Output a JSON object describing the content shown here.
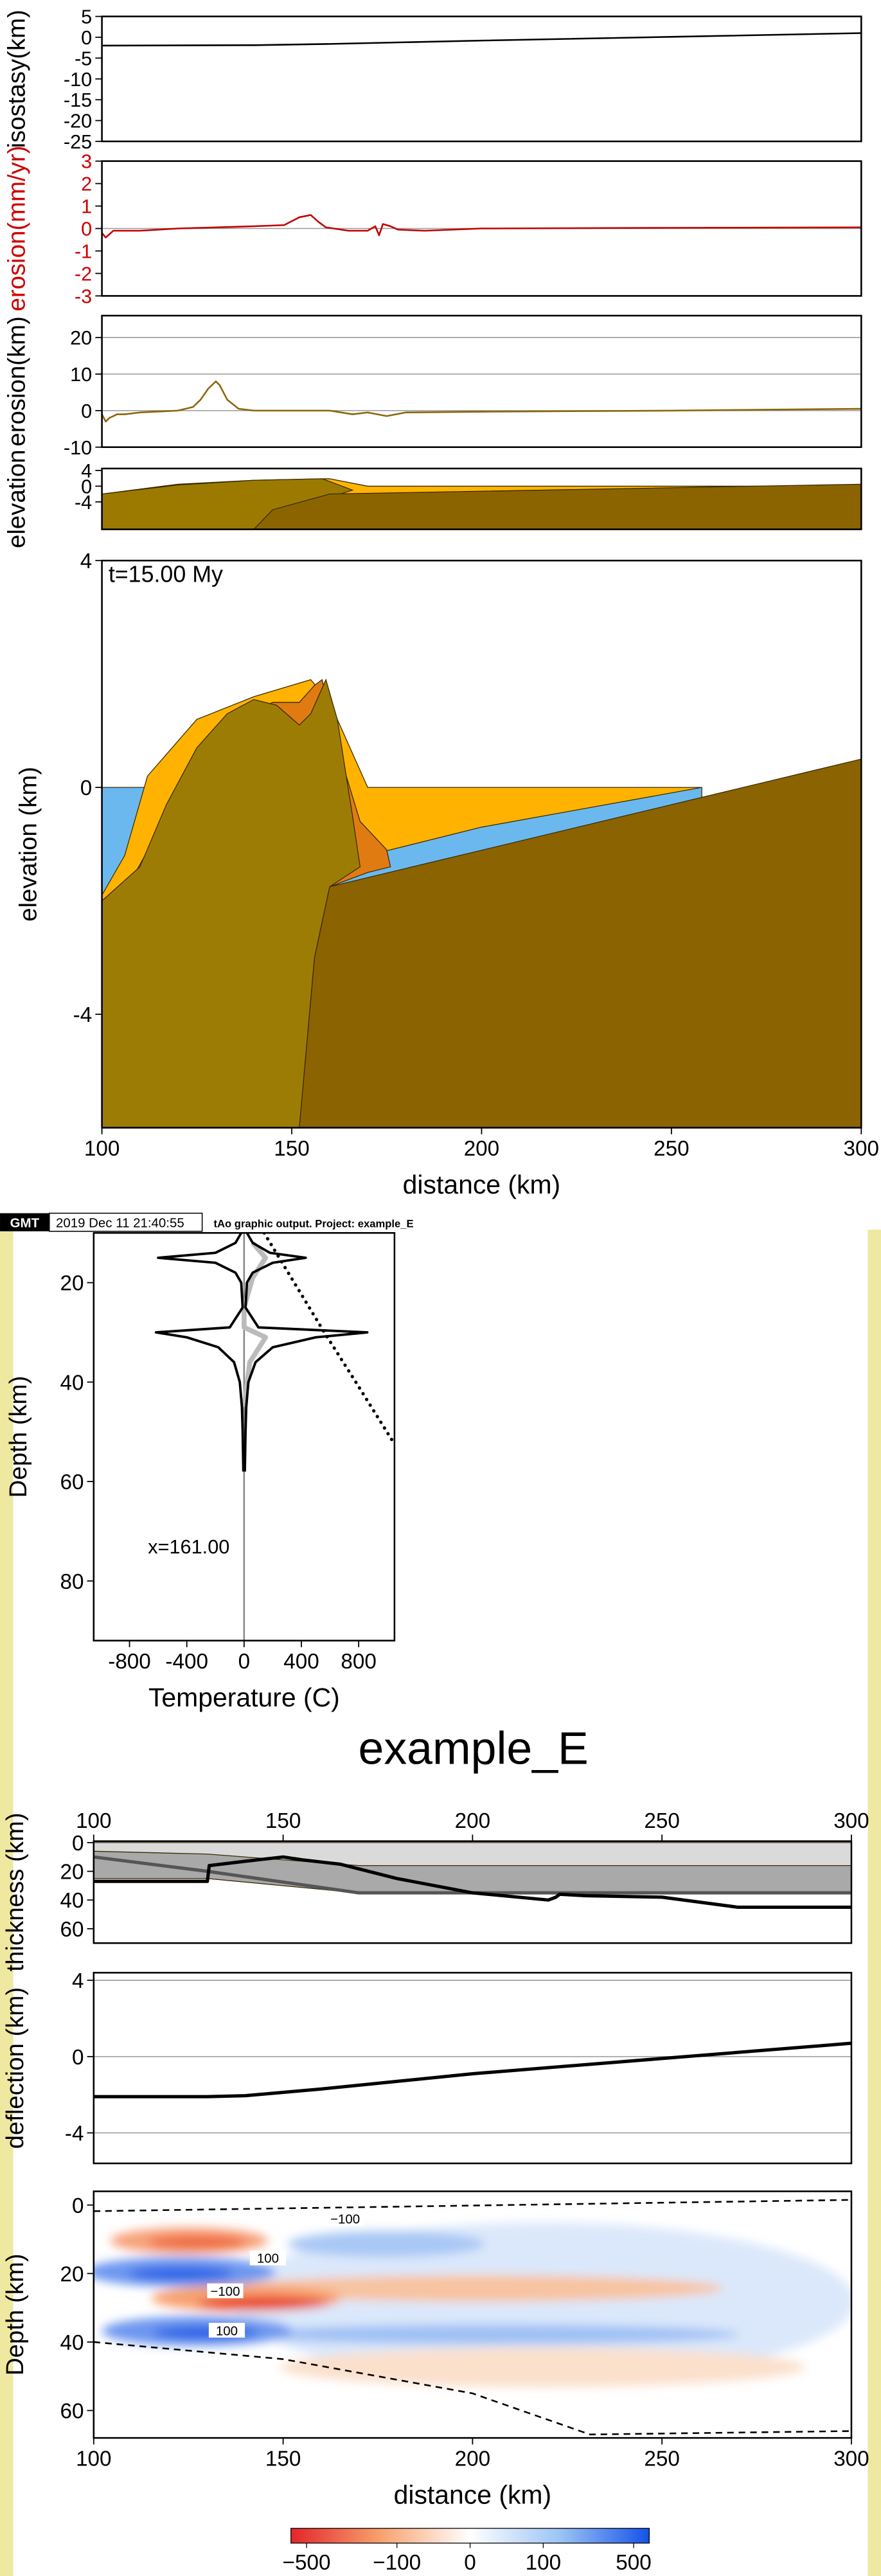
{
  "header": {
    "logo": "GMT",
    "timestamp": "2019 Dec 11 21:40:55",
    "caption": "tAo graphic output. Project: example_E"
  },
  "title": "example_E",
  "chart_data": [
    {
      "type": "line",
      "ylabel": "isostasy(km)",
      "xlim": [
        100,
        300
      ],
      "ylim": [
        -25,
        5
      ],
      "yticks": [
        5,
        0,
        -5,
        -10,
        -15,
        -20,
        -25
      ],
      "series": [
        {
          "color": "#000000",
          "x": [
            100,
            140,
            160,
            200,
            250,
            300
          ],
          "values": [
            -2,
            -1.9,
            -1.6,
            -0.8,
            0.1,
            1
          ]
        }
      ]
    },
    {
      "type": "line",
      "ylabel": "erosion(mm/yr)",
      "label_color": "#cc0000",
      "xlim": [
        100,
        300
      ],
      "ylim": [
        -3,
        3
      ],
      "yticks": [
        3,
        2,
        1,
        0,
        -1,
        -2,
        -3
      ],
      "grid_lines": [
        0
      ],
      "series": [
        {
          "color": "#c00000",
          "x": [
            100,
            101,
            103,
            110,
            120,
            130,
            140,
            148,
            152,
            155,
            157,
            159,
            161,
            165,
            170,
            172,
            173,
            174,
            175,
            176,
            178,
            185,
            200,
            250,
            300
          ],
          "values": [
            -0.2,
            -0.4,
            -0.1,
            -0.1,
            0,
            0.05,
            0.1,
            0.15,
            0.5,
            0.6,
            0.3,
            0.05,
            0,
            -0.1,
            -0.1,
            0.1,
            -0.3,
            0.2,
            0.15,
            0.1,
            -0.05,
            -0.1,
            0,
            0.03,
            0.05
          ]
        }
      ]
    },
    {
      "type": "line",
      "ylabel": "erosion(km)",
      "xlim": [
        100,
        300
      ],
      "ylim": [
        -10,
        26
      ],
      "yticks": [
        20,
        10,
        0,
        -10
      ],
      "grid_lines": [
        20,
        10,
        0
      ],
      "series": [
        {
          "color": "#8b6508",
          "x": [
            100,
            101,
            102,
            104,
            106,
            110,
            120,
            124,
            126,
            128,
            130,
            131,
            133,
            136,
            140,
            150,
            160,
            166,
            170,
            175,
            180,
            200,
            250,
            300
          ],
          "values": [
            -1,
            -3,
            -2,
            -1,
            -1,
            -0.5,
            0,
            1,
            3,
            6,
            8,
            7,
            3,
            0.5,
            0,
            0,
            0,
            -1,
            -0.5,
            -1.5,
            -0.5,
            -0.3,
            0,
            0.5
          ]
        }
      ]
    },
    {
      "type": "area",
      "ylabel": "elevation",
      "xlim": [
        100,
        300
      ],
      "ylim": [
        -11,
        4.5
      ],
      "yticks": [
        4,
        0,
        -4
      ],
      "series": [
        {
          "fill": "#ffb400",
          "x": [
            100,
            120,
            140,
            160,
            170,
            300,
            300,
            100
          ],
          "values": [
            -2,
            0.5,
            1.5,
            1.9,
            0,
            0,
            -11,
            -11
          ]
        },
        {
          "fill": "#9c7a00",
          "x": [
            100,
            120,
            140,
            158,
            166,
            150,
            140,
            100
          ],
          "values": [
            -2,
            0.3,
            1.5,
            1.9,
            -1,
            -6,
            -11,
            -11
          ]
        },
        {
          "fill": "#8b6400",
          "x": [
            145,
            160,
            300,
            300,
            140
          ],
          "values": [
            -6,
            -2,
            0.5,
            -11,
            -11
          ]
        }
      ]
    },
    {
      "type": "area",
      "ylabel": "elevation (km)",
      "xlabel": "distance (km)",
      "annotation": "t=15.00 My",
      "xlim": [
        100,
        300
      ],
      "ylim": [
        -6,
        4
      ],
      "xticks": [
        100,
        150,
        200,
        250,
        300
      ],
      "yticks": [
        4,
        0,
        -4
      ],
      "series": [
        {
          "fill": "#6bb8ef",
          "x": [
            100,
            258,
            258,
            100
          ],
          "values": [
            0,
            0,
            -2,
            -2
          ]
        },
        {
          "fill": "#ffb300",
          "x": [
            100,
            106,
            112,
            125,
            140,
            155,
            160,
            170,
            258,
            200,
            170,
            160,
            100
          ],
          "values": [
            -1.9,
            -1.2,
            0.2,
            1.2,
            1.6,
            1.9,
            1.5,
            0,
            0,
            -0.7,
            -1.2,
            -1.75,
            -2
          ]
        },
        {
          "fill": "#e07b12",
          "x": [
            100,
            108,
            118,
            130,
            145,
            152,
            156,
            158,
            163,
            168,
            175,
            176,
            170,
            160,
            100
          ],
          "values": [
            -2,
            -1.6,
            -0.4,
            1,
            1.5,
            1.5,
            1.8,
            1.9,
            0.5,
            -0.6,
            -1.1,
            -1.4,
            -1.5,
            -1.75,
            -2
          ]
        },
        {
          "fill": "#9c7c05",
          "x": [
            100,
            110,
            117,
            125,
            133,
            140,
            146,
            152,
            155,
            159,
            162,
            166,
            168,
            160,
            156,
            152,
            100
          ],
          "values": [
            -2,
            -1.4,
            -0.3,
            0.7,
            1.3,
            1.55,
            1.45,
            1.1,
            1.3,
            1.9,
            1.2,
            -0.5,
            -1.4,
            -1.75,
            -3,
            -6,
            -6
          ]
        },
        {
          "fill": "#8b6300",
          "x": [
            152,
            156,
            160,
            300,
            300
          ],
          "values": [
            -6,
            -3,
            -1.75,
            0.5,
            -6
          ]
        }
      ]
    },
    {
      "type": "line",
      "ylabel": "Depth (km)",
      "xlabel": "Temperature (C)",
      "annotation": "x=161.00",
      "xlim": [
        -1050,
        1050
      ],
      "ylim": [
        92,
        10
      ],
      "xticks": [
        -800,
        -400,
        0,
        400,
        800
      ],
      "yticks": [
        20,
        40,
        60,
        80
      ],
      "series": [
        {
          "color": "#888888",
          "x": [
            0,
            0
          ],
          "values": [
            10,
            92
          ]
        },
        {
          "color": "#bbbbbb",
          "width": 3,
          "x": [
            60,
            150,
            60,
            0,
            0,
            150,
            40,
            0
          ],
          "values": [
            12,
            15,
            19,
            25,
            29,
            31,
            36,
            45
          ]
        },
        {
          "color": "#000000",
          "width": 1.5,
          "x": [
            20,
            60,
            180,
            430,
            200,
            60,
            20,
            10,
            100,
            860,
            500,
            200,
            80,
            30,
            15,
            10,
            5
          ],
          "values": [
            10,
            12,
            14,
            15,
            16,
            18,
            20,
            25,
            29,
            30,
            31,
            33,
            36,
            40,
            45,
            50,
            58
          ]
        },
        {
          "color": "#000000",
          "width": 1.5,
          "x": [
            -20,
            -60,
            -200,
            -600,
            -200,
            -60,
            -20,
            -10,
            -100,
            -615,
            -400,
            -180,
            -70,
            -30,
            -15,
            -10,
            -5
          ],
          "values": [
            10,
            12,
            14,
            15,
            16,
            18,
            20,
            25,
            29,
            30,
            31,
            33,
            36,
            40,
            45,
            50,
            58
          ]
        },
        {
          "color": "#000000",
          "width": 1.5,
          "dash": "dot",
          "x": [
            140,
            350,
            560,
            780,
            1040
          ],
          "values": [
            10,
            20,
            30,
            40,
            52
          ]
        }
      ]
    },
    {
      "type": "area",
      "ylabel": "thickness (km)",
      "xaxis": "top",
      "xlim": [
        100,
        300
      ],
      "ylim": [
        70,
        -1
      ],
      "xticks": [
        100,
        150,
        200,
        250,
        300
      ],
      "yticks": [
        0,
        20,
        40,
        60
      ],
      "series": [
        {
          "fill": "#dadada",
          "x": [
            100,
            300,
            300,
            170,
            130,
            100
          ],
          "values": [
            0,
            0,
            35,
            35,
            25,
            25
          ]
        },
        {
          "fill": "#a9a9a9",
          "x": [
            100,
            130,
            170,
            300,
            300,
            170,
            130,
            100
          ],
          "values": [
            6,
            8,
            16,
            16,
            35,
            35,
            25,
            25
          ]
        },
        {
          "color": "#555555",
          "width": 2,
          "x": [
            100,
            130,
            170,
            300
          ],
          "values": [
            10,
            20,
            35,
            35
          ]
        },
        {
          "color": "#000000",
          "width": 2,
          "x": [
            100,
            130,
            130.5,
            140,
            150,
            155,
            165,
            180,
            200,
            220,
            222,
            223,
            230,
            250,
            270,
            300
          ],
          "values": [
            27,
            27,
            16,
            13,
            10,
            12,
            15,
            25,
            35,
            40,
            38,
            36,
            37,
            38,
            45,
            45
          ]
        }
      ]
    },
    {
      "type": "line",
      "ylabel": "deflection (km)",
      "xlim": [
        100,
        300
      ],
      "ylim": [
        -5.6,
        4.4
      ],
      "yticks": [
        4,
        0,
        -4
      ],
      "grid_lines": [
        4,
        0,
        -4
      ],
      "series": [
        {
          "color": "#000000",
          "width": 2,
          "x": [
            100,
            130,
            140,
            160,
            180,
            200,
            250,
            300
          ],
          "values": [
            -2.1,
            -2.1,
            -2.05,
            -1.7,
            -1.3,
            -0.9,
            -0.1,
            0.7
          ]
        }
      ]
    },
    {
      "type": "contour",
      "ylabel": "Depth (km)",
      "xlabel": "distance (km)",
      "xlim": [
        100,
        300
      ],
      "ylim": [
        68,
        -4
      ],
      "xticks": [
        100,
        150,
        200,
        250,
        300
      ],
      "yticks": [
        0,
        20,
        40,
        60
      ],
      "series": [
        {
          "color": "#000000",
          "dash": "dash",
          "x": [
            100,
            300
          ],
          "values": [
            1.8,
            -1.5
          ]
        },
        {
          "color": "#000000",
          "dash": "dash",
          "x": [
            100,
            150,
            200,
            231,
            300
          ],
          "values": [
            40,
            45,
            55,
            67,
            66
          ]
        }
      ],
      "contour_labels": [
        "−100",
        "100",
        "−100",
        "100"
      ],
      "colorbar": {
        "range": [
          -600,
          600
        ],
        "colors": [
          "#e3262a",
          "#f8a16e",
          "#ffffff",
          "#9cc4f5",
          "#1652e8"
        ],
        "ticks": [
          {
            "value": -500,
            "label": "−500"
          },
          {
            "value": -100,
            "label": "−100"
          },
          0,
          100,
          500
        ]
      }
    }
  ]
}
